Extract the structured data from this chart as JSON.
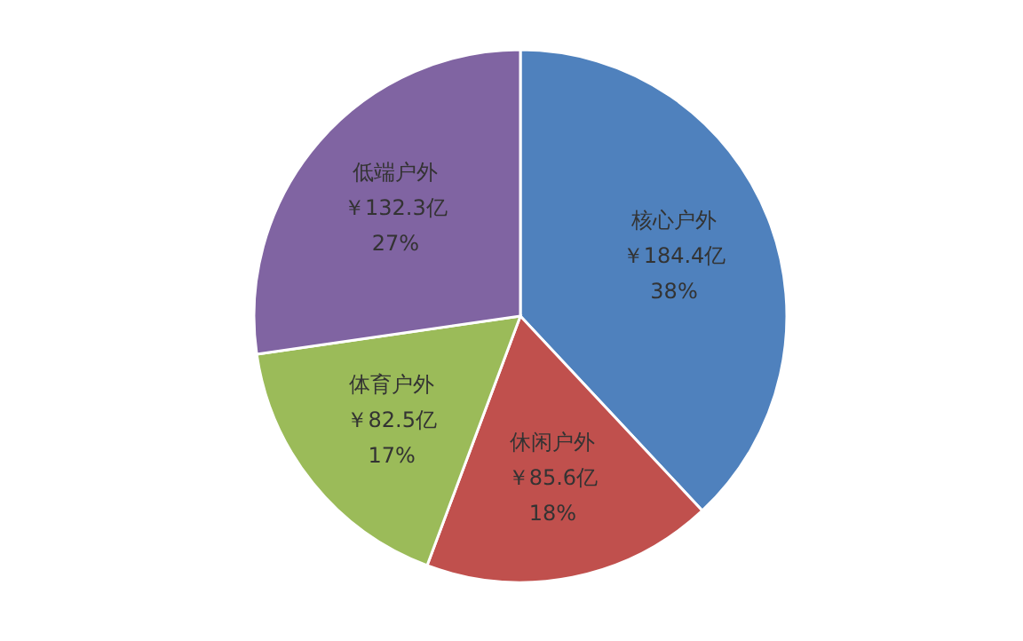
{
  "chart_data": {
    "type": "pie",
    "categories": [
      "核心户外",
      "休闲户外",
      "体育户外",
      "低端户外"
    ],
    "values": [
      184.4,
      85.6,
      82.5,
      132.3
    ],
    "colors": [
      "#4f81bd",
      "#c0504d",
      "#9bbb59",
      "#8064a2"
    ],
    "value_labels": [
      "￥184.4亿\n38%",
      "￥85.6亿\n18%",
      "￥82.5亿\n17%",
      "￥132.3亿\n27%"
    ]
  }
}
